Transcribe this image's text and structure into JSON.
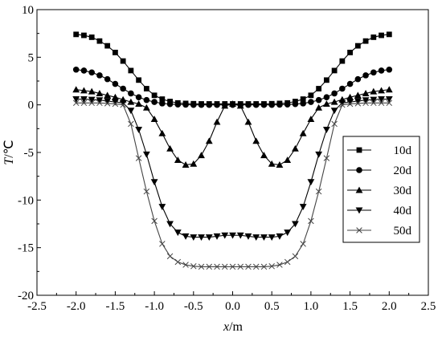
{
  "chart_data": {
    "type": "line",
    "xlabel_var": "x",
    "xlabel_unit": "/m",
    "ylabel_var": "T",
    "ylabel_unit": "/℃",
    "xlim": [
      -2.5,
      2.5
    ],
    "ylim": [
      -20,
      10
    ],
    "xticks": [
      -2.5,
      -2.0,
      -1.5,
      -1.0,
      -0.5,
      0.0,
      0.5,
      1.0,
      1.5,
      2.0,
      2.5
    ],
    "xtick_labels": [
      "-2.5",
      "-2.0",
      "-1.5",
      "-1.0",
      "-0.5",
      "0.0",
      "0.5",
      "1.0",
      "1.5",
      "2.0",
      "2.5"
    ],
    "yticks": [
      10,
      5,
      0,
      -5,
      -10,
      -15,
      -20
    ],
    "ytick_labels": [
      "10",
      "5",
      "0",
      "-5",
      "-10",
      "-15",
      "-20"
    ],
    "grid": false,
    "legend_position": "right",
    "x": [
      -2.0,
      -1.9,
      -1.8,
      -1.7,
      -1.6,
      -1.5,
      -1.4,
      -1.3,
      -1.2,
      -1.1,
      -1.0,
      -0.9,
      -0.8,
      -0.7,
      -0.6,
      -0.5,
      -0.4,
      -0.3,
      -0.2,
      -0.1,
      0.0,
      0.1,
      0.2,
      0.3,
      0.4,
      0.5,
      0.6,
      0.7,
      0.8,
      0.9,
      1.0,
      1.1,
      1.2,
      1.3,
      1.4,
      1.5,
      1.6,
      1.7,
      1.8,
      1.9,
      2.0
    ],
    "series": [
      {
        "name": "10d",
        "marker": "square",
        "values": [
          7.4,
          7.3,
          7.1,
          6.7,
          6.2,
          5.5,
          4.6,
          3.6,
          2.6,
          1.7,
          1.0,
          0.6,
          0.35,
          0.2,
          0.15,
          0.12,
          0.1,
          0.1,
          0.1,
          0.1,
          0.1,
          0.1,
          0.1,
          0.1,
          0.1,
          0.12,
          0.15,
          0.2,
          0.35,
          0.6,
          1.0,
          1.7,
          2.6,
          3.6,
          4.6,
          5.5,
          6.2,
          6.7,
          7.1,
          7.3,
          7.4
        ]
      },
      {
        "name": "20d",
        "marker": "circle",
        "values": [
          3.7,
          3.6,
          3.4,
          3.1,
          2.7,
          2.2,
          1.7,
          1.2,
          0.8,
          0.5,
          0.3,
          0.15,
          0.08,
          0.04,
          0.02,
          0.0,
          0.0,
          0.0,
          0.0,
          0.0,
          0.0,
          0.0,
          0.0,
          0.0,
          0.0,
          0.0,
          0.02,
          0.04,
          0.08,
          0.15,
          0.3,
          0.5,
          0.8,
          1.2,
          1.7,
          2.2,
          2.7,
          3.1,
          3.4,
          3.6,
          3.7
        ]
      },
      {
        "name": "30d",
        "marker": "triangle-up",
        "values": [
          1.6,
          1.5,
          1.4,
          1.2,
          1.0,
          0.8,
          0.55,
          0.3,
          0.1,
          -0.3,
          -1.5,
          -3.0,
          -4.6,
          -5.8,
          -6.3,
          -6.2,
          -5.3,
          -3.8,
          -1.8,
          -0.1,
          0.1,
          -0.1,
          -1.8,
          -3.8,
          -5.3,
          -6.2,
          -6.3,
          -5.8,
          -4.6,
          -3.0,
          -1.5,
          -0.3,
          0.1,
          0.3,
          0.55,
          0.8,
          1.0,
          1.2,
          1.4,
          1.5,
          1.6
        ]
      },
      {
        "name": "40d",
        "marker": "triangle-down",
        "values": [
          0.6,
          0.6,
          0.55,
          0.5,
          0.4,
          0.3,
          0.2,
          -0.6,
          -2.6,
          -5.2,
          -8.1,
          -10.7,
          -12.5,
          -13.4,
          -13.8,
          -13.9,
          -13.9,
          -13.9,
          -13.8,
          -13.7,
          -13.7,
          -13.7,
          -13.8,
          -13.9,
          -13.9,
          -13.9,
          -13.8,
          -13.4,
          -12.5,
          -10.7,
          -8.1,
          -5.2,
          -2.6,
          -0.6,
          0.2,
          0.3,
          0.4,
          0.5,
          0.55,
          0.6,
          0.6
        ]
      },
      {
        "name": "50d",
        "marker": "x",
        "values": [
          0.2,
          0.2,
          0.2,
          0.2,
          0.15,
          0.1,
          0.0,
          -2.0,
          -5.6,
          -9.1,
          -12.2,
          -14.6,
          -15.9,
          -16.5,
          -16.8,
          -16.95,
          -17.0,
          -17.0,
          -17.0,
          -17.0,
          -17.0,
          -17.0,
          -17.0,
          -17.0,
          -17.0,
          -16.95,
          -16.8,
          -16.5,
          -15.9,
          -14.6,
          -12.2,
          -9.1,
          -5.6,
          -2.0,
          0.0,
          0.1,
          0.15,
          0.2,
          0.2,
          0.2,
          0.2
        ]
      }
    ]
  }
}
